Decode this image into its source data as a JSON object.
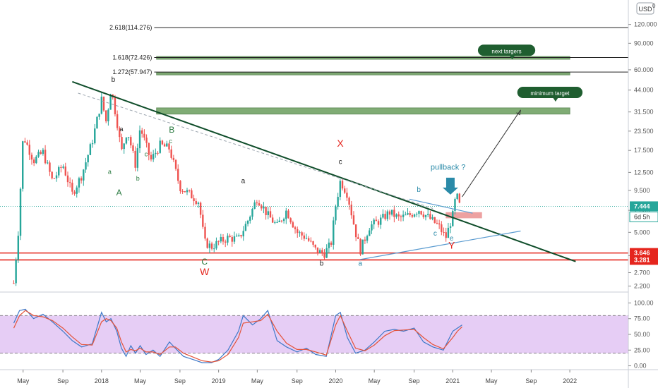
{
  "header": {
    "currency": "USD",
    "corner_glyph": "0"
  },
  "chart_data": [
    {
      "type": "candlestick",
      "scale": "log",
      "ylim": [
        2.05,
        160
      ],
      "y_ticks": [
        "120.000",
        "90.000",
        "60.000",
        "44.000",
        "31.500",
        "23.500",
        "17.500",
        "12.500",
        "9.500",
        "7.000",
        "5.000",
        "3.500",
        "2.700",
        "2.200"
      ],
      "x_ticks": [
        "May",
        "Sep",
        "2018",
        "May",
        "Sep",
        "2019",
        "May",
        "Sep",
        "2020",
        "May",
        "Sep",
        "2021",
        "May",
        "Sep",
        "2022"
      ],
      "x_tick_values": [
        2017.33,
        2017.67,
        2018.0,
        2018.33,
        2018.67,
        2019.0,
        2019.33,
        2019.67,
        2020.0,
        2020.33,
        2020.67,
        2021.0,
        2021.33,
        2021.67,
        2022.0
      ],
      "price_path": [
        [
          2017.25,
          2.3
        ],
        [
          2017.29,
          5.2
        ],
        [
          2017.33,
          22
        ],
        [
          2017.42,
          15
        ],
        [
          2017.5,
          17
        ],
        [
          2017.58,
          11
        ],
        [
          2017.67,
          14
        ],
        [
          2017.75,
          9
        ],
        [
          2017.83,
          12
        ],
        [
          2017.92,
          20
        ],
        [
          2018.0,
          38
        ],
        [
          2018.04,
          27
        ],
        [
          2018.08,
          45
        ],
        [
          2018.13,
          28
        ],
        [
          2018.17,
          17
        ],
        [
          2018.22,
          24
        ],
        [
          2018.29,
          14
        ],
        [
          2018.33,
          25
        ],
        [
          2018.42,
          15
        ],
        [
          2018.5,
          19
        ],
        [
          2018.58,
          18
        ],
        [
          2018.67,
          10
        ],
        [
          2018.75,
          9
        ],
        [
          2018.83,
          8
        ],
        [
          2018.88,
          4.3
        ],
        [
          2018.94,
          4.0
        ],
        [
          2019.0,
          4.3
        ],
        [
          2019.08,
          4.6
        ],
        [
          2019.17,
          4.5
        ],
        [
          2019.25,
          6
        ],
        [
          2019.33,
          8.5
        ],
        [
          2019.42,
          6.5
        ],
        [
          2019.5,
          5.5
        ],
        [
          2019.58,
          7
        ],
        [
          2019.67,
          5
        ],
        [
          2019.75,
          4.6
        ],
        [
          2019.83,
          3.8
        ],
        [
          2019.9,
          3.6
        ],
        [
          2019.96,
          4.2
        ],
        [
          2020.0,
          7.5
        ],
        [
          2020.04,
          11
        ],
        [
          2020.1,
          9
        ],
        [
          2020.17,
          5
        ],
        [
          2020.21,
          3.8
        ],
        [
          2020.29,
          5.5
        ],
        [
          2020.38,
          6
        ],
        [
          2020.46,
          6.8
        ],
        [
          2020.54,
          6.2
        ],
        [
          2020.63,
          6.5
        ],
        [
          2020.71,
          7.1
        ],
        [
          2020.79,
          6.3
        ],
        [
          2020.88,
          5.5
        ],
        [
          2020.94,
          4.6
        ],
        [
          2021.0,
          6.5
        ],
        [
          2021.03,
          9
        ],
        [
          2021.06,
          7.444
        ]
      ],
      "last_price": "7.444",
      "countdown": "6d 5h",
      "horizontal_levels": [
        {
          "label": "3.646",
          "value": 3.646,
          "color": "#e5251d"
        },
        {
          "label": "3.281",
          "value": 3.281,
          "color": "#e5251d"
        }
      ],
      "fib_levels": [
        {
          "label": "2.618(114.276)",
          "value": 114.276
        },
        {
          "label": "1.618(72.426)",
          "value": 72.426
        },
        {
          "label": "1.272(57.947)",
          "value": 57.947
        }
      ],
      "target_zones": [
        {
          "low": 55.5,
          "high": 57.4,
          "x_from": 2018.47,
          "x_to": 2022.0
        },
        {
          "low": 70.5,
          "high": 73.5,
          "x_from": 2018.47,
          "x_to": 2022.0
        },
        {
          "low": 30.5,
          "high": 33.5,
          "x_from": 2018.47,
          "x_to": 2022.0
        }
      ],
      "pullback_box": {
        "low": 6.2,
        "high": 6.8,
        "x_from": 2020.94,
        "x_to": 2021.25
      },
      "trendline_main": [
        [
          2017.75,
          50
        ],
        [
          2022.05,
          3.2
        ]
      ],
      "trendline_dashed": [
        [
          2017.8,
          42
        ],
        [
          2020.83,
          7.2
        ]
      ],
      "trendline_support": [
        [
          2020.21,
          3.3
        ],
        [
          2021.58,
          5.1
        ]
      ],
      "triangle_upper": [
        [
          2020.63,
          8.3
        ],
        [
          2021.17,
          6.7
        ]
      ],
      "projection_arrow": [
        [
          2021.08,
          8.6
        ],
        [
          2021.58,
          32.5
        ]
      ],
      "callouts": [
        {
          "text": "next targers",
          "x": 2021.46,
          "y": 80
        },
        {
          "text": "minimum target",
          "x": 2021.83,
          "y": 42
        },
        {
          "text": "pullback ?",
          "x": 2020.96,
          "y": 13
        }
      ],
      "wave_labels": [
        {
          "text": "b",
          "x": 2018.1,
          "y": 50,
          "color": "#222222",
          "size": 10
        },
        {
          "text": "a",
          "x": 2018.17,
          "y": 23.5,
          "color": "#222222",
          "size": 9
        },
        {
          "text": "a",
          "x": 2018.07,
          "y": 12.2,
          "color": "#2a7a40",
          "size": 9
        },
        {
          "text": "c",
          "x": 2018.38,
          "y": 16,
          "color": "#2a7a40",
          "size": 9
        },
        {
          "text": "B",
          "x": 2018.6,
          "y": 23.0,
          "color": "#2a7a40",
          "size": 12
        },
        {
          "text": "c",
          "x": 2018.59,
          "y": 19.5,
          "color": "#2a7a40",
          "size": 9
        },
        {
          "text": "A",
          "x": 2018.15,
          "y": 8.8,
          "color": "#2a7a40",
          "size": 12
        },
        {
          "text": "b",
          "x": 2018.31,
          "y": 11.0,
          "color": "#2a7a40",
          "size": 9
        },
        {
          "text": "C",
          "x": 2018.88,
          "y": 3.05,
          "color": "#2a7a40",
          "size": 12
        },
        {
          "text": "W",
          "x": 2018.88,
          "y": 2.6,
          "color": "#e5251d",
          "size": 14
        },
        {
          "text": "a",
          "x": 2019.21,
          "y": 10.6,
          "color": "#222222",
          "size": 10
        },
        {
          "text": "b",
          "x": 2019.88,
          "y": 3.0,
          "color": "#222222",
          "size": 10
        },
        {
          "text": "X",
          "x": 2020.04,
          "y": 18.5,
          "color": "#e5251d",
          "size": 14
        },
        {
          "text": "c",
          "x": 2020.04,
          "y": 14.2,
          "color": "#222222",
          "size": 10
        },
        {
          "text": "a",
          "x": 2020.21,
          "y": 3.0,
          "color": "#2a8aa8",
          "size": 10
        },
        {
          "text": "b",
          "x": 2020.71,
          "y": 9.3,
          "color": "#2a8aa8",
          "size": 10
        },
        {
          "text": "c",
          "x": 2020.85,
          "y": 4.75,
          "color": "#2a8aa8",
          "size": 10
        },
        {
          "text": "d",
          "x": 2020.96,
          "y": 9.3,
          "color": "#2a8aa8",
          "size": 10
        },
        {
          "text": "e",
          "x": 2020.99,
          "y": 4.4,
          "color": "#2a8aa8",
          "size": 10
        },
        {
          "text": "Y",
          "x": 2020.99,
          "y": 3.9,
          "color": "#e5251d",
          "size": 14
        }
      ],
      "colors": {
        "up": "#26a69a",
        "down": "#ef5350",
        "trend": "#0f4d2a",
        "zone": "#6a9e5e",
        "box": "#e88a8a"
      }
    },
    {
      "type": "line",
      "title": "",
      "ylim": [
        -5,
        105
      ],
      "y_ticks": [
        "100.00",
        "75.00",
        "50.00",
        "25.00",
        "0.00"
      ],
      "band": [
        20,
        80
      ],
      "series": [
        {
          "color": "#3e78c8",
          "points": [
            [
              2017.25,
              68
            ],
            [
              2017.3,
              88
            ],
            [
              2017.35,
              90
            ],
            [
              2017.42,
              75
            ],
            [
              2017.5,
              82
            ],
            [
              2017.58,
              70
            ],
            [
              2017.67,
              55
            ],
            [
              2017.75,
              40
            ],
            [
              2017.83,
              30
            ],
            [
              2017.92,
              35
            ],
            [
              2018.0,
              85
            ],
            [
              2018.04,
              70
            ],
            [
              2018.08,
              75
            ],
            [
              2018.13,
              55
            ],
            [
              2018.17,
              28
            ],
            [
              2018.21,
              15
            ],
            [
              2018.25,
              32
            ],
            [
              2018.29,
              20
            ],
            [
              2018.33,
              32
            ],
            [
              2018.38,
              18
            ],
            [
              2018.44,
              25
            ],
            [
              2018.5,
              15
            ],
            [
              2018.58,
              38
            ],
            [
              2018.63,
              28
            ],
            [
              2018.7,
              15
            ],
            [
              2018.78,
              10
            ],
            [
              2018.86,
              5
            ],
            [
              2018.94,
              5
            ],
            [
              2019.0,
              10
            ],
            [
              2019.08,
              25
            ],
            [
              2019.17,
              55
            ],
            [
              2019.21,
              80
            ],
            [
              2019.29,
              65
            ],
            [
              2019.36,
              75
            ],
            [
              2019.42,
              88
            ],
            [
              2019.5,
              40
            ],
            [
              2019.58,
              30
            ],
            [
              2019.67,
              22
            ],
            [
              2019.75,
              28
            ],
            [
              2019.83,
              18
            ],
            [
              2019.92,
              15
            ],
            [
              2020.0,
              80
            ],
            [
              2020.04,
              85
            ],
            [
              2020.1,
              45
            ],
            [
              2020.17,
              20
            ],
            [
              2020.25,
              25
            ],
            [
              2020.33,
              38
            ],
            [
              2020.42,
              55
            ],
            [
              2020.5,
              58
            ],
            [
              2020.58,
              55
            ],
            [
              2020.67,
              60
            ],
            [
              2020.75,
              38
            ],
            [
              2020.83,
              30
            ],
            [
              2020.92,
              25
            ],
            [
              2021.0,
              55
            ],
            [
              2021.04,
              60
            ],
            [
              2021.08,
              65
            ]
          ]
        },
        {
          "color": "#e4533a",
          "points": [
            [
              2017.25,
              60
            ],
            [
              2017.3,
              80
            ],
            [
              2017.35,
              88
            ],
            [
              2017.42,
              80
            ],
            [
              2017.5,
              78
            ],
            [
              2017.58,
              72
            ],
            [
              2017.67,
              60
            ],
            [
              2017.75,
              46
            ],
            [
              2017.83,
              34
            ],
            [
              2017.92,
              33
            ],
            [
              2018.0,
              70
            ],
            [
              2018.04,
              75
            ],
            [
              2018.08,
              72
            ],
            [
              2018.13,
              60
            ],
            [
              2018.17,
              38
            ],
            [
              2018.21,
              22
            ],
            [
              2018.25,
              26
            ],
            [
              2018.29,
              24
            ],
            [
              2018.33,
              28
            ],
            [
              2018.38,
              22
            ],
            [
              2018.44,
              22
            ],
            [
              2018.5,
              18
            ],
            [
              2018.58,
              30
            ],
            [
              2018.63,
              30
            ],
            [
              2018.7,
              20
            ],
            [
              2018.78,
              14
            ],
            [
              2018.86,
              8
            ],
            [
              2018.94,
              6
            ],
            [
              2019.0,
              8
            ],
            [
              2019.08,
              18
            ],
            [
              2019.17,
              45
            ],
            [
              2019.21,
              68
            ],
            [
              2019.29,
              70
            ],
            [
              2019.36,
              72
            ],
            [
              2019.42,
              82
            ],
            [
              2019.5,
              55
            ],
            [
              2019.58,
              36
            ],
            [
              2019.67,
              26
            ],
            [
              2019.75,
              26
            ],
            [
              2019.83,
              22
            ],
            [
              2019.92,
              17
            ],
            [
              2020.0,
              65
            ],
            [
              2020.04,
              80
            ],
            [
              2020.1,
              55
            ],
            [
              2020.17,
              28
            ],
            [
              2020.25,
              24
            ],
            [
              2020.33,
              33
            ],
            [
              2020.42,
              48
            ],
            [
              2020.5,
              56
            ],
            [
              2020.58,
              57
            ],
            [
              2020.67,
              58
            ],
            [
              2020.75,
              45
            ],
            [
              2020.83,
              34
            ],
            [
              2020.92,
              27
            ],
            [
              2021.0,
              45
            ],
            [
              2021.04,
              55
            ],
            [
              2021.08,
              62
            ]
          ]
        }
      ]
    }
  ]
}
